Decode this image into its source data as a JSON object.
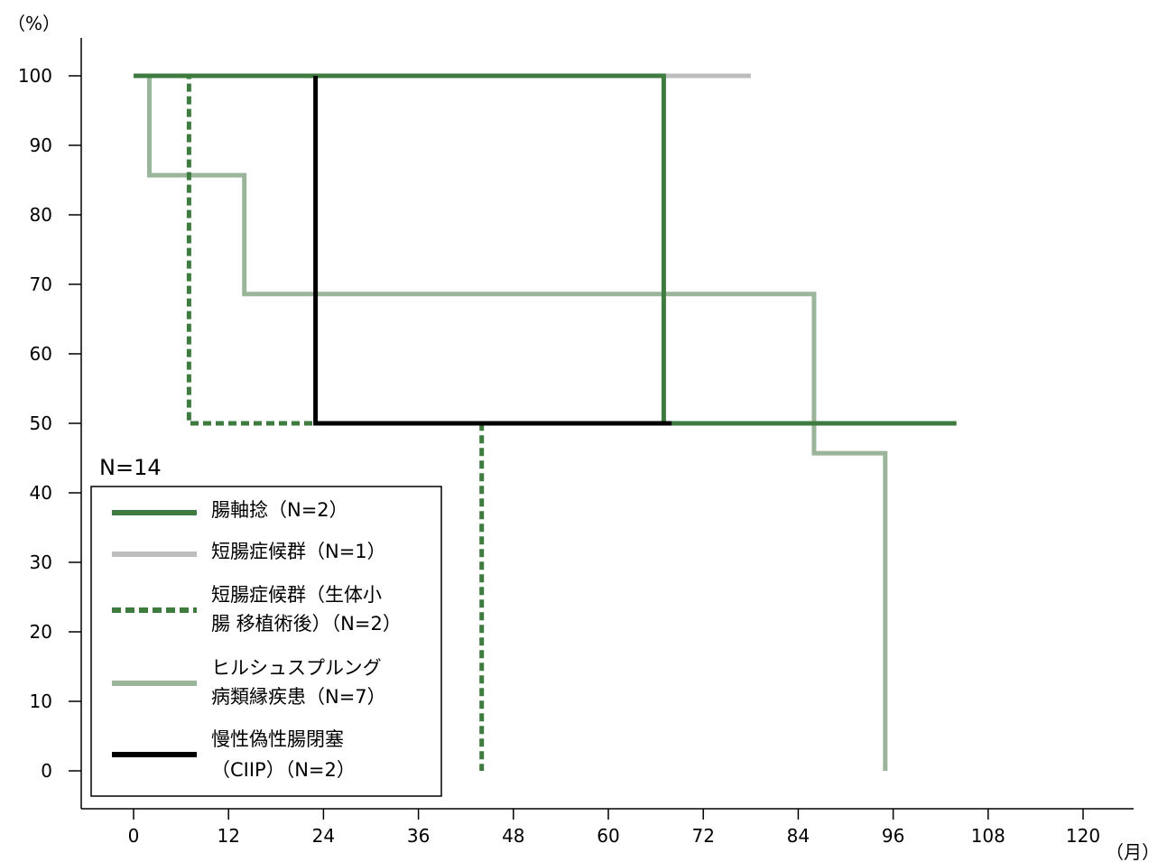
{
  "chart_data": {
    "type": "line",
    "subtype": "kaplan-meier",
    "x_unit": "（月）",
    "y_unit": "（%）",
    "xlim": [
      0,
      120
    ],
    "ylim": [
      0,
      100
    ],
    "x_ticks": [
      0,
      12,
      24,
      36,
      48,
      60,
      72,
      84,
      96,
      108,
      120
    ],
    "y_ticks": [
      0,
      10,
      20,
      30,
      40,
      50,
      60,
      70,
      80,
      90,
      100
    ],
    "annotation": "N=14",
    "grid": false,
    "legend_position": "bottom-left",
    "series": [
      {
        "id": "volvulus",
        "name_lines": [
          "腸軸捻（N=2）"
        ],
        "color": "#3e7b3e",
        "style": "solid",
        "points": [
          [
            0,
            100
          ],
          [
            67,
            100
          ],
          [
            67,
            50
          ],
          [
            104,
            50
          ]
        ]
      },
      {
        "id": "short-bowel",
        "name_lines": [
          "短腸症候群（N=1）"
        ],
        "color": "#bdbdbd",
        "style": "solid",
        "points": [
          [
            0,
            100
          ],
          [
            78,
            100
          ]
        ]
      },
      {
        "id": "short-bowel-transplant",
        "name_lines": [
          "短腸症候群（生体小",
          "腸 移植術後）（N=2）"
        ],
        "color": "#3e7b3e",
        "style": "dashed",
        "points": [
          [
            0,
            100
          ],
          [
            7,
            100
          ],
          [
            7,
            50
          ],
          [
            44,
            50
          ],
          [
            44,
            0
          ]
        ]
      },
      {
        "id": "hirschsprung",
        "name_lines": [
          "ヒルシュスプルング",
          "病類縁疾患（N=7）"
        ],
        "color": "#9bb59b",
        "style": "solid",
        "points": [
          [
            0,
            100
          ],
          [
            2,
            100
          ],
          [
            2,
            85.7
          ],
          [
            14,
            85.7
          ],
          [
            14,
            68.6
          ],
          [
            86,
            68.6
          ],
          [
            86,
            45.7
          ],
          [
            95,
            45.7
          ],
          [
            95,
            0
          ]
        ]
      },
      {
        "id": "ciip",
        "name_lines": [
          "慢性偽性腸閉塞",
          "（CIIP）（N=2）"
        ],
        "color": "#000000",
        "style": "solid",
        "points": [
          [
            23,
            100
          ],
          [
            23,
            50
          ],
          [
            68,
            50
          ]
        ]
      }
    ]
  }
}
